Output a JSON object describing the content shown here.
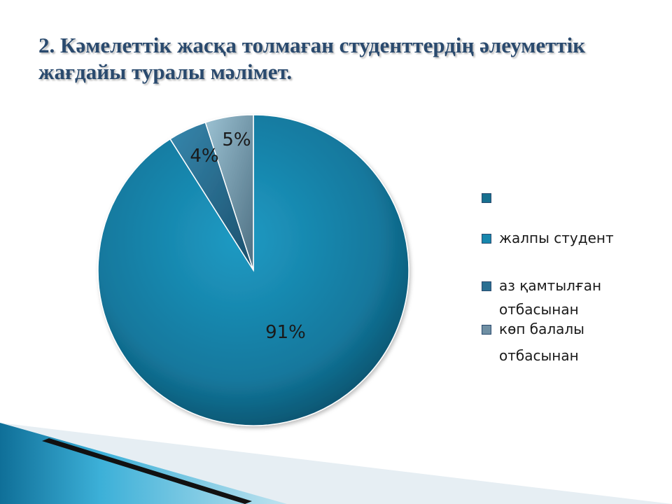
{
  "title_lines": [
    "2. Кәмелеттік жасқа толмаған студенттердің әлеуметтік",
    "жағдайы туралы мәлімет."
  ],
  "colors": {
    "title": "#2a4a6e",
    "slice_main": "#1787ad",
    "slice_mid": "#2a6f92",
    "slice_small": "#5f8ea6",
    "deco_blue": "#1f93c0",
    "deco_black": "#111111"
  },
  "legend": {
    "items": [
      {
        "text": "",
        "color": "#17708f"
      },
      {
        "text": "жалпы студент",
        "color": "#1787ad"
      },
      {
        "text_lines": [
          "аз қамтылған",
          "отбасынан"
        ],
        "color": "#2a6f92"
      },
      {
        "text_lines": [
          "көп балалы",
          "отбасынан"
        ],
        "color": "#6f8fa3"
      }
    ]
  },
  "chart_data": {
    "type": "pie",
    "title": "2. Кәмелеттік жасқа толмаған студенттердің әлеуметтік жағдайы туралы мәлімет.",
    "slices": [
      {
        "label": "жалпы студент",
        "value": 91,
        "data_label": "91%"
      },
      {
        "label": "аз қамтылған отбасынан",
        "value": 4,
        "data_label": "4%"
      },
      {
        "label": "көп балалы отбасынан",
        "value": 5,
        "data_label": "5%"
      }
    ],
    "legend_position": "right",
    "start_angle": "12 o'clock",
    "direction": "clockwise"
  }
}
